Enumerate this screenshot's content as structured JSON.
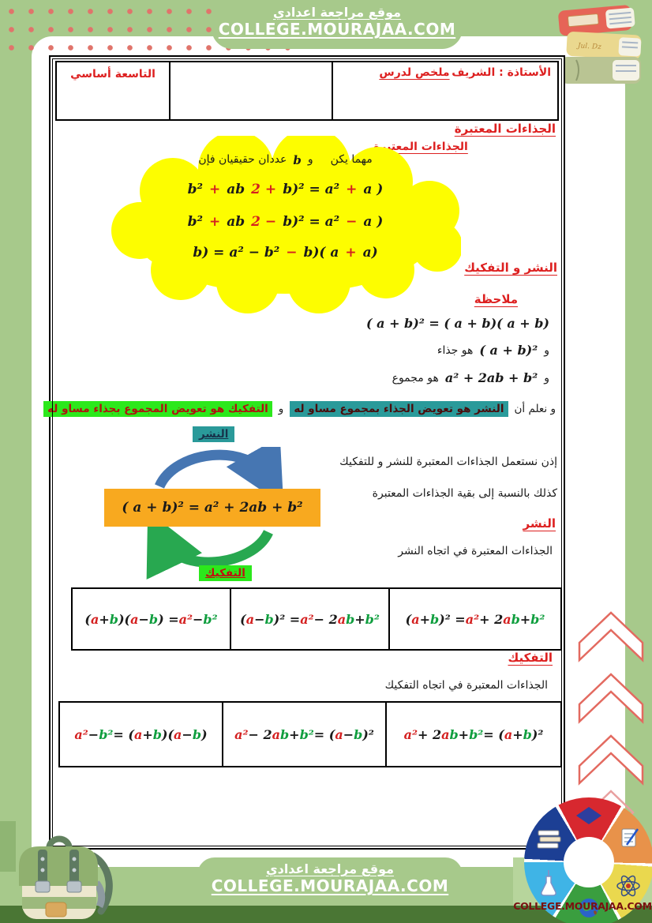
{
  "top_banner": {
    "site_name": "موقع مراجعة اعدادي",
    "site_url": "COLLEGE.MOURAJAA.COM"
  },
  "doc_header": {
    "level": "التاسعة أساسي",
    "lesson_prefix": "ملخص لدرس",
    "lesson_title": "الجذاءات المعتبرة",
    "teacher": "الأستاذة : الشريف"
  },
  "section_title": "الجذاءات المعتبرة",
  "cloud": {
    "intro_start": "مهما يكن",
    "intro_wa": "و",
    "intro_b": "b",
    "intro_rest": "عددان حقيقيان فإن",
    "f1": [
      {
        "t": "( a ",
        "c": "k"
      },
      {
        "t": "+",
        "c": "r"
      },
      {
        "t": " b)² = a² ",
        "c": "k"
      },
      {
        "t": "+ 2",
        "c": "r"
      },
      {
        "t": "ab ",
        "c": "k"
      },
      {
        "t": "+",
        "c": "r"
      },
      {
        "t": " b²",
        "c": "k"
      }
    ],
    "f2": [
      {
        "t": "( a ",
        "c": "k"
      },
      {
        "t": "−",
        "c": "r"
      },
      {
        "t": " b)² = a² ",
        "c": "k"
      },
      {
        "t": "− 2",
        "c": "r"
      },
      {
        "t": "ab ",
        "c": "k"
      },
      {
        "t": "+",
        "c": "r"
      },
      {
        "t": " b²",
        "c": "k"
      }
    ],
    "f3": [
      {
        "t": "(a ",
        "c": "k"
      },
      {
        "t": "+",
        "c": "r"
      },
      {
        "t": " b)( a ",
        "c": "k"
      },
      {
        "t": "−",
        "c": "r"
      },
      {
        "t": " b) = a² − b²",
        "c": "k"
      }
    ]
  },
  "headings": {
    "expansion_and_factoring": "النشر و التفكيك",
    "note": "ملاحظة",
    "expansion_red": "النشر",
    "factoring_red": "التفكيك",
    "expansion_teal_label": "النشر",
    "factoring_green_label": "التفكيك"
  },
  "note_block": {
    "identity": "( a + b)² = ( a + b)( a + b)",
    "wa1": "و",
    "square_formula": "( a + b)²",
    "is_product": "هو جذاء",
    "wa2": "و",
    "sum_formula": "a² + 2ab + b²",
    "is_sum": "هو مجموع"
  },
  "definitions": {
    "we_know": "و نعلم أن",
    "expansion_def": "النشر هو تعويض الجذاء بمجموع مساو له",
    "wa": "و",
    "factoring_def": "التفكيك هو تعويض المجموع بجذاء مساو له"
  },
  "diagram": {
    "box_formula": "( a + b)²  =  a² + 2ab + b²"
  },
  "usage": {
    "line1": "إذن نستعمل الجذاءات المعتبرة للنشر و للتفكيك",
    "line2": "كذلك بالنسبة  إلى بقية الجذاءات المعتبرة",
    "expansion_caption": "الجذاءات المعتبرة في اتجاه النشر",
    "factoring_caption": "الجذاءات المعتبرة في اتجاه التفكيك"
  },
  "expansion_table": [
    [
      {
        "t": "(",
        "c": "k"
      },
      {
        "t": "a",
        "c": "r"
      },
      {
        "t": " + ",
        "c": "k"
      },
      {
        "t": "b",
        "c": "g"
      },
      {
        "t": ")( ",
        "c": "k"
      },
      {
        "t": "a",
        "c": "r"
      },
      {
        "t": " − ",
        "c": "k"
      },
      {
        "t": "b",
        "c": "g"
      },
      {
        "t": ") = ",
        "c": "k"
      },
      {
        "t": "a²",
        "c": "r"
      },
      {
        "t": " − ",
        "c": "k"
      },
      {
        "t": "b²",
        "c": "g"
      }
    ],
    [
      {
        "t": "( ",
        "c": "k"
      },
      {
        "t": "a",
        "c": "r"
      },
      {
        "t": " − ",
        "c": "k"
      },
      {
        "t": "b",
        "c": "g"
      },
      {
        "t": ")² = ",
        "c": "k"
      },
      {
        "t": "a²",
        "c": "r"
      },
      {
        "t": " − 2",
        "c": "k"
      },
      {
        "t": "a",
        "c": "r"
      },
      {
        "t": "b",
        "c": "g"
      },
      {
        "t": " + ",
        "c": "k"
      },
      {
        "t": "b²",
        "c": "g"
      }
    ],
    [
      {
        "t": "( ",
        "c": "k"
      },
      {
        "t": "a",
        "c": "r"
      },
      {
        "t": " + ",
        "c": "k"
      },
      {
        "t": "b",
        "c": "g"
      },
      {
        "t": ")² = ",
        "c": "k"
      },
      {
        "t": "a²",
        "c": "r"
      },
      {
        "t": " + 2",
        "c": "k"
      },
      {
        "t": "a",
        "c": "r"
      },
      {
        "t": "b",
        "c": "g"
      },
      {
        "t": " + ",
        "c": "k"
      },
      {
        "t": "b²",
        "c": "g"
      }
    ]
  ],
  "factoring_table": [
    [
      {
        "t": "a²",
        "c": "r"
      },
      {
        "t": " − ",
        "c": "k"
      },
      {
        "t": "b²",
        "c": "g"
      },
      {
        "t": " = (",
        "c": "k"
      },
      {
        "t": "a",
        "c": "r"
      },
      {
        "t": " + ",
        "c": "k"
      },
      {
        "t": "b",
        "c": "g"
      },
      {
        "t": ")( ",
        "c": "k"
      },
      {
        "t": "a",
        "c": "r"
      },
      {
        "t": " − ",
        "c": "k"
      },
      {
        "t": "b",
        "c": "g"
      },
      {
        "t": ")",
        "c": "k"
      }
    ],
    [
      {
        "t": "a²",
        "c": "r"
      },
      {
        "t": " − 2",
        "c": "k"
      },
      {
        "t": "a",
        "c": "r"
      },
      {
        "t": "b",
        "c": "g"
      },
      {
        "t": " + ",
        "c": "k"
      },
      {
        "t": "b²",
        "c": "g"
      },
      {
        "t": " = ( ",
        "c": "k"
      },
      {
        "t": "a",
        "c": "r"
      },
      {
        "t": " − ",
        "c": "k"
      },
      {
        "t": "b",
        "c": "g"
      },
      {
        "t": ")²",
        "c": "k"
      }
    ],
    [
      {
        "t": "a²",
        "c": "r"
      },
      {
        "t": " + 2",
        "c": "k"
      },
      {
        "t": "a",
        "c": "r"
      },
      {
        "t": "b",
        "c": "g"
      },
      {
        "t": " + ",
        "c": "k"
      },
      {
        "t": "b²",
        "c": "g"
      },
      {
        "t": " = ( ",
        "c": "k"
      },
      {
        "t": "a",
        "c": "r"
      },
      {
        "t": " + ",
        "c": "k"
      },
      {
        "t": "b",
        "c": "g"
      },
      {
        "t": ")²",
        "c": "k"
      }
    ]
  ],
  "footer": {
    "site_name": "موقع مراجعة اعدادي",
    "site_url": "COLLEGE.MOURAJAA.COM",
    "logo_caption": "COLLEGE.MOURAJAA.COM"
  },
  "colors": {
    "page_green": "#a7c98b",
    "accent_red": "#dd2020",
    "teal_highlight": "#2a9a9a",
    "green_highlight": "#2ce81c",
    "orange_box": "#f8a91f",
    "cloud_yellow": "#fdfd00",
    "var_a_red": "#d42020",
    "var_b_green": "#0f9e3e"
  }
}
